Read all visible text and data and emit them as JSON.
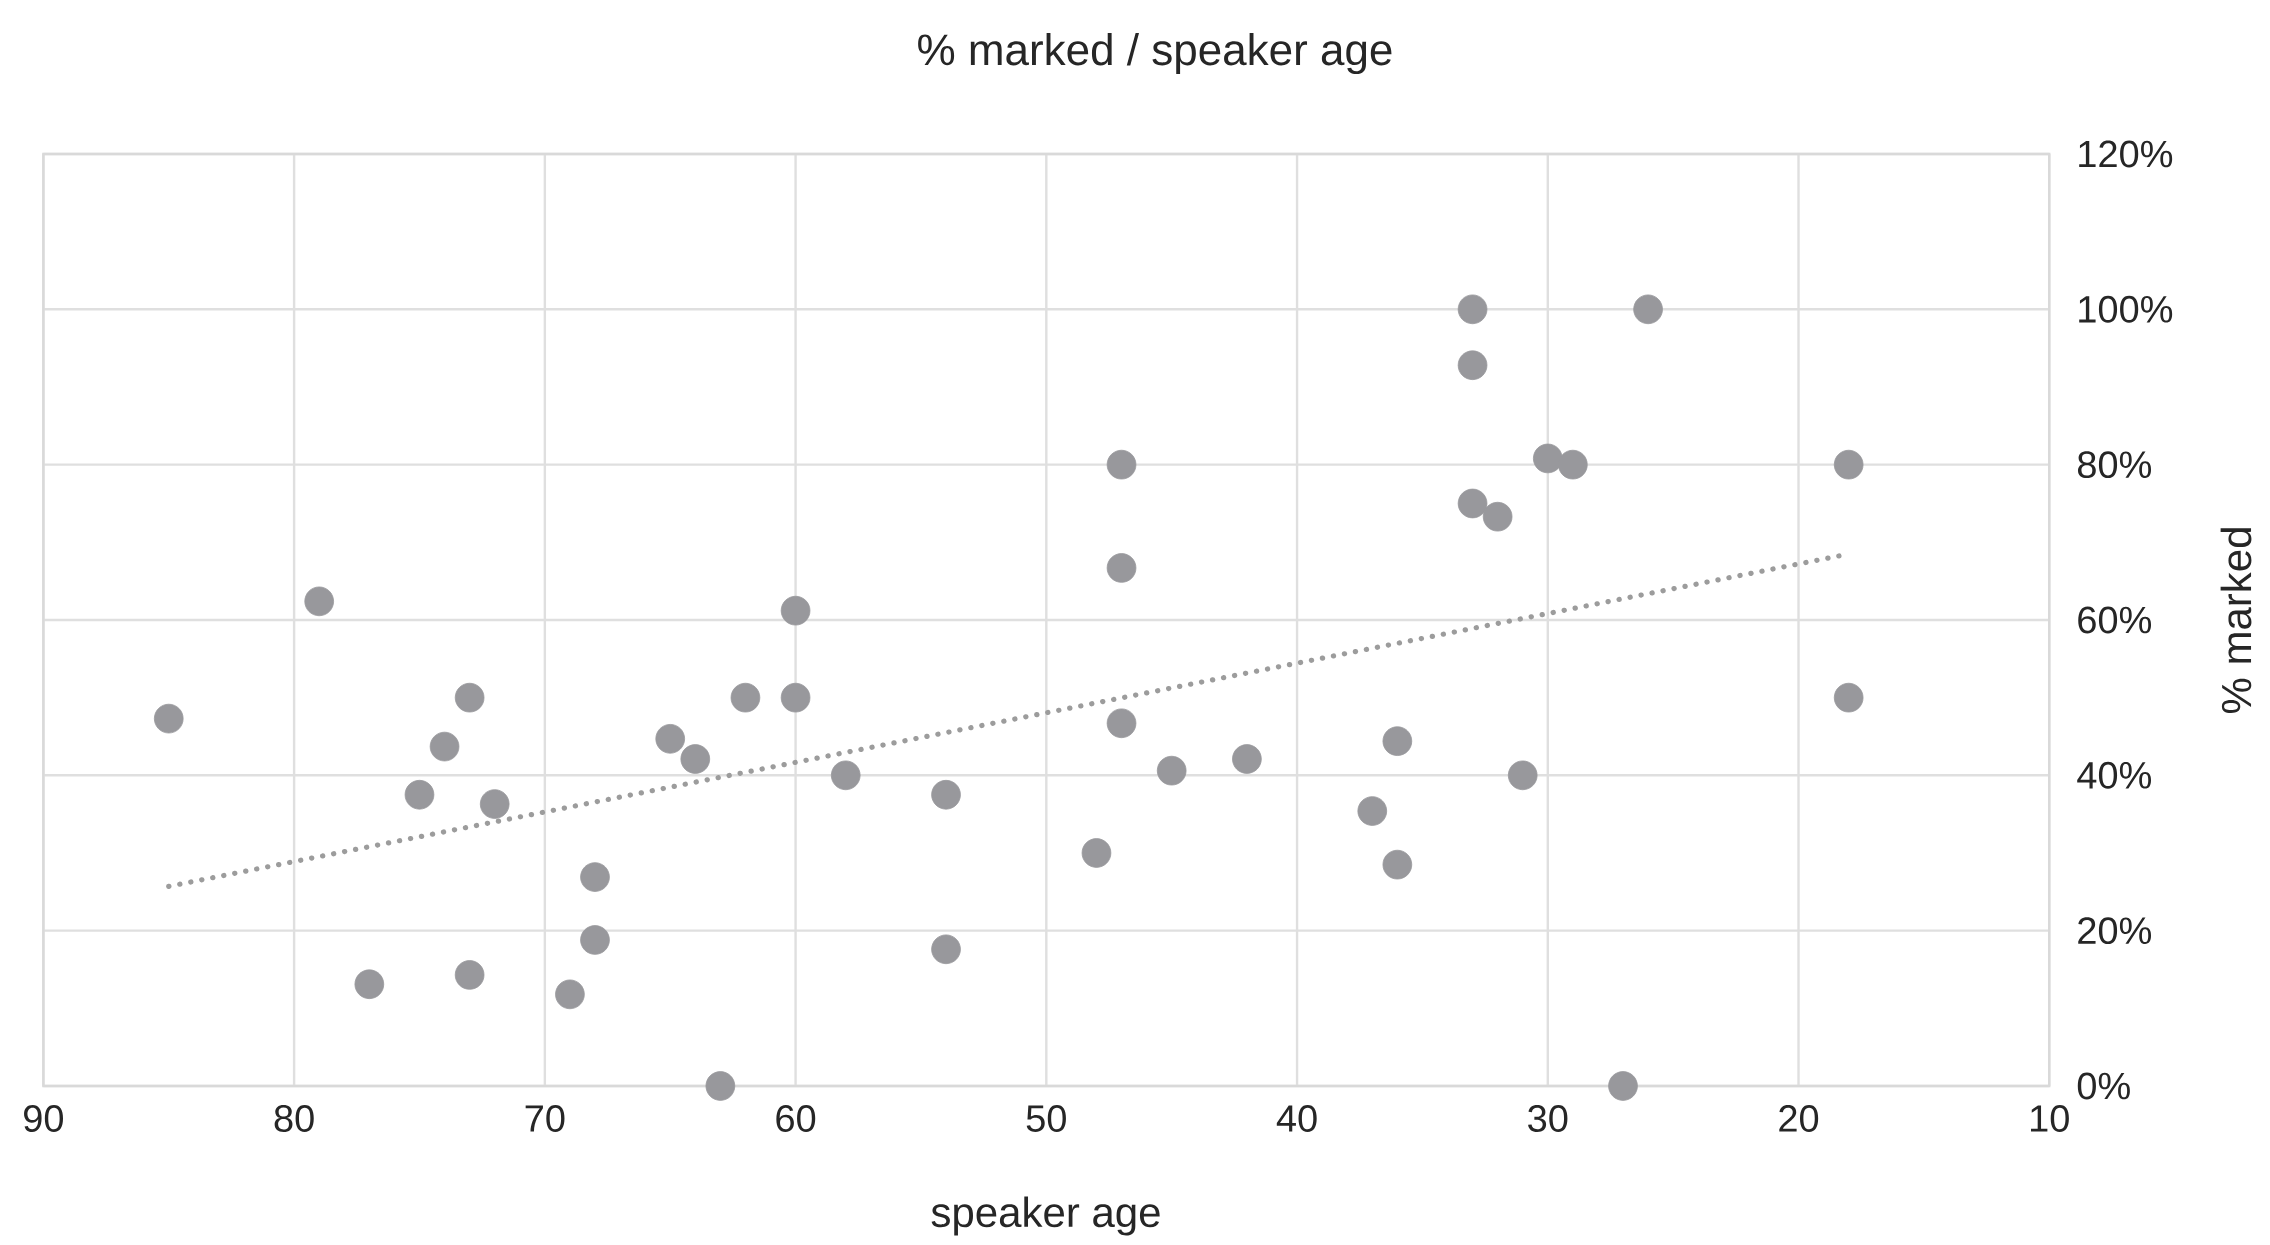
{
  "chart_data": {
    "type": "scatter",
    "title": "% marked / speaker age",
    "xlabel": "speaker age",
    "ylabel": "% marked",
    "xlim": [
      90,
      10
    ],
    "xticks": [
      90,
      80,
      70,
      60,
      50,
      40,
      30,
      20,
      10
    ],
    "ylim": [
      0,
      120
    ],
    "yticks": [
      {
        "value": 0,
        "label": "0%"
      },
      {
        "value": 20,
        "label": "20%"
      },
      {
        "value": 40,
        "label": "40%"
      },
      {
        "value": 60,
        "label": "60%"
      },
      {
        "value": 80,
        "label": "80%"
      },
      {
        "value": 100,
        "label": "100%"
      },
      {
        "value": 120,
        "label": "120%"
      }
    ],
    "grid": true,
    "marker": "circle",
    "series": [
      {
        "color": "#98989c",
        "x": [
          85,
          79,
          77,
          75,
          74,
          73,
          73,
          72,
          68,
          68,
          69,
          65,
          64,
          63,
          62,
          60,
          60,
          58,
          54,
          54,
          48,
          47,
          47,
          47,
          45,
          42,
          37,
          36,
          36,
          33,
          33,
          33,
          32,
          31,
          30,
          29,
          26,
          27,
          18,
          18
        ],
        "values": [
          47.3,
          62.4,
          13.1,
          37.5,
          43.7,
          50,
          14.3,
          36.3,
          26.9,
          18.8,
          11.8,
          44.7,
          42.1,
          0,
          50,
          61.2,
          50,
          40,
          37.5,
          17.6,
          30,
          80,
          66.7,
          46.7,
          40.6,
          42.1,
          35.4,
          44.4,
          28.5,
          100,
          92.8,
          75,
          73.3,
          40,
          80.8,
          80,
          100,
          0,
          80,
          50
        ]
      },
      {
        "type": "line",
        "color": "#9c9c9c",
        "line_style": "dotted",
        "marker": "none",
        "x": [
          85,
          18.3
        ],
        "values": [
          25.7,
          68.3
        ]
      }
    ]
  }
}
